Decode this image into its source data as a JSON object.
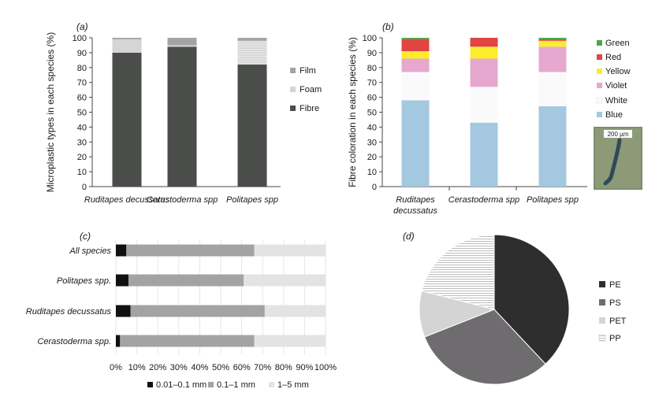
{
  "chart_data": [
    {
      "panel": "(a)",
      "type": "bar",
      "stacked": true,
      "ylabel": "Microplastic types in each species (%)",
      "ylim": [
        0,
        100
      ],
      "yticks": [
        0,
        10,
        20,
        30,
        40,
        50,
        60,
        70,
        80,
        90,
        100
      ],
      "categories": [
        "Ruditapes decussatus",
        "Cerastoderma spp",
        "Politapes spp"
      ],
      "series": [
        {
          "name": "Fibre",
          "color": "#4a4d4a",
          "values": [
            90,
            94,
            82
          ]
        },
        {
          "name": "Foam",
          "color": "#d5d5d5",
          "values": [
            9,
            1,
            16
          ]
        },
        {
          "name": "Film",
          "color": "#a3a3a3",
          "values": [
            1,
            5,
            2
          ]
        }
      ],
      "legend_order": [
        "Film",
        "Foam",
        "Fibre"
      ],
      "legend_position": "right"
    },
    {
      "panel": "(b)",
      "type": "bar",
      "stacked": true,
      "ylabel": "Fibre coloration in each species (%)",
      "ylim": [
        0,
        100
      ],
      "yticks": [
        0,
        10,
        20,
        30,
        40,
        50,
        60,
        70,
        80,
        90,
        100
      ],
      "categories": [
        "Ruditapes\ndecussatus",
        "Cerastoderma spp",
        "Politapes spp"
      ],
      "series": [
        {
          "name": "Blue",
          "color": "#a4c8e0",
          "values": [
            58,
            43,
            54
          ]
        },
        {
          "name": "White",
          "color": "#fafafa",
          "values": [
            19,
            24,
            23
          ]
        },
        {
          "name": "Violet",
          "color": "#e6a8cf",
          "values": [
            9,
            19,
            17
          ]
        },
        {
          "name": "Yellow",
          "color": "#fcec2e",
          "values": [
            5,
            8,
            4
          ]
        },
        {
          "name": "Red",
          "color": "#e14443",
          "values": [
            8,
            6,
            1
          ]
        },
        {
          "name": "Green",
          "color": "#4aa843",
          "values": [
            1,
            0,
            1
          ]
        }
      ],
      "legend_order": [
        "Green",
        "Red",
        "Yellow",
        "Violet",
        "White",
        "Blue"
      ],
      "legend_position": "right",
      "inset_scale_label": "200 µm"
    },
    {
      "panel": "(c)",
      "type": "bar",
      "orientation": "horizontal",
      "stacked": true,
      "xlim": [
        0,
        100
      ],
      "xticks": [
        "0%",
        "10%",
        "20%",
        "30%",
        "40%",
        "50%",
        "60%",
        "70%",
        "80%",
        "90%",
        "100%"
      ],
      "categories": [
        "All species",
        "Politapes spp.",
        "Ruditapes decussatus",
        "Cerastoderma spp."
      ],
      "series": [
        {
          "name": "0.01–0.1 mm",
          "color": "#111111",
          "values": [
            5,
            6,
            7,
            2
          ]
        },
        {
          "name": "0.1–1 mm",
          "color": "#a3a3a3",
          "values": [
            61,
            55,
            64,
            64
          ]
        },
        {
          "name": "1–5 mm",
          "color": "#e3e3e3",
          "values": [
            34,
            39,
            29,
            34
          ]
        }
      ],
      "legend_position": "bottom"
    },
    {
      "panel": "(d)",
      "type": "pie",
      "slices": [
        {
          "name": "PE",
          "color": "#2e2e2e",
          "value": 38
        },
        {
          "name": "PS",
          "color": "#6e6c6e",
          "value": 31
        },
        {
          "name": "PET",
          "color": "#d4d4d4",
          "value": 10
        },
        {
          "name": "PP",
          "color": "hatched",
          "value": 21
        }
      ],
      "legend_position": "right"
    }
  ]
}
